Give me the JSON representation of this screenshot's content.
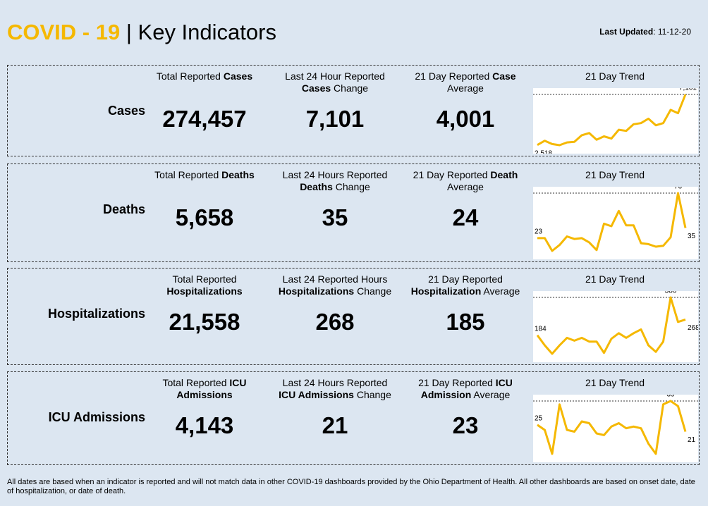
{
  "header": {
    "title_highlight": "COVID - 19",
    "separator": "|",
    "title": "Key Indicators",
    "updated_label": "Last Updated",
    "updated": ": 11-12-20"
  },
  "rows": [
    {
      "label": "Cases",
      "metrics": [
        {
          "title": [
            [
              {
                "text": "Total Reported "
              },
              {
                "text": "Cases",
                "bold": true
              }
            ]
          ],
          "value": "274,457"
        },
        {
          "title": [
            [
              {
                "text": "Last 24 Hour Reported"
              }
            ],
            [
              {
                "text": "Cases",
                "bold": true
              },
              {
                "text": " Change"
              }
            ]
          ],
          "value": "7,101"
        },
        {
          "title": [
            [
              {
                "text": "21 Day Reported "
              },
              {
                "text": "Case",
                "bold": true
              }
            ],
            [
              {
                "text": "Average"
              }
            ]
          ],
          "value": "4,001"
        }
      ],
      "trend": {
        "title": "21 Day Trend",
        "values": [
          2518,
          2900,
          2600,
          2500,
          2750,
          2800,
          3400,
          3600,
          3000,
          3300,
          3100,
          3900,
          3800,
          4400,
          4500,
          4900,
          4300,
          4500,
          5700,
          5400,
          7101
        ],
        "value_labels": [
          "2,518",
          null,
          null,
          null,
          null,
          null,
          null,
          null,
          null,
          null,
          null,
          null,
          null,
          null,
          null,
          null,
          null,
          null,
          null,
          null,
          "7,101"
        ]
      }
    },
    {
      "label": "Deaths",
      "metrics": [
        {
          "title": [
            [
              {
                "text": "Total Reported "
              },
              {
                "text": "Deaths",
                "bold": true
              }
            ]
          ],
          "value": "5,658"
        },
        {
          "title": [
            [
              {
                "text": "Last 24 Hours Reported"
              }
            ],
            [
              {
                "text": "Deaths",
                "bold": true
              },
              {
                "text": " Change"
              }
            ]
          ],
          "value": "35"
        },
        {
          "title": [
            [
              {
                "text": "21 Day Reported "
              },
              {
                "text": "Death",
                "bold": true
              }
            ],
            [
              {
                "text": "Average"
              }
            ]
          ],
          "value": "24"
        }
      ],
      "trend": {
        "title": "21 Day Trend",
        "values": [
          23,
          23,
          8,
          15,
          25,
          22,
          23,
          18,
          9,
          40,
          37,
          55,
          38,
          38,
          17,
          16,
          13,
          14,
          24,
          76,
          35
        ],
        "value_labels": [
          "23",
          null,
          null,
          null,
          null,
          null,
          null,
          null,
          null,
          null,
          null,
          null,
          null,
          null,
          null,
          null,
          null,
          null,
          null,
          "76",
          "35"
        ]
      }
    },
    {
      "label": "Hospitalizations",
      "metrics": [
        {
          "title": [
            [
              {
                "text": "Total Reported"
              }
            ],
            [
              {
                "text": "Hospitalizations",
                "bold": true
              }
            ]
          ],
          "value": "21,558"
        },
        {
          "title": [
            [
              {
                "text": "Last 24 Reported Hours"
              }
            ],
            [
              {
                "text": "Hospitalizations",
                "bold": true
              },
              {
                "text": " Change"
              }
            ]
          ],
          "value": "268"
        },
        {
          "title": [
            [
              {
                "text": "21 Day Reported"
              }
            ],
            [
              {
                "text": "Hospitalization",
                "bold": true
              },
              {
                "text": " Average"
              }
            ]
          ],
          "value": "185"
        }
      ],
      "trend": {
        "title": "21 Day Trend",
        "values": [
          184,
          130,
          85,
          130,
          170,
          155,
          170,
          150,
          150,
          90,
          165,
          195,
          170,
          195,
          215,
          130,
          95,
          150,
          386,
          255,
          268
        ],
        "value_labels": [
          "184",
          null,
          null,
          null,
          null,
          null,
          null,
          null,
          null,
          null,
          null,
          null,
          null,
          null,
          null,
          null,
          null,
          null,
          "386",
          null,
          "268"
        ]
      }
    },
    {
      "label": "ICU Admissions",
      "metrics": [
        {
          "title": [
            [
              {
                "text": "Total Reported "
              },
              {
                "text": "ICU",
                "bold": true
              }
            ],
            [
              {
                "text": "Admissions",
                "bold": true
              }
            ]
          ],
          "value": "4,143"
        },
        {
          "title": [
            [
              {
                "text": "Last 24 Hours Reported"
              }
            ],
            [
              {
                "text": "ICU Admissions",
                "bold": true
              },
              {
                "text": " Change"
              }
            ]
          ],
          "value": "21"
        },
        {
          "title": [
            [
              {
                "text": "21 Day Reported "
              },
              {
                "text": "ICU",
                "bold": true
              }
            ],
            [
              {
                "text": "Admission",
                "bold": true
              },
              {
                "text": " Average"
              }
            ]
          ],
          "value": "23"
        }
      ],
      "trend": {
        "title": "21 Day Trend",
        "values": [
          25,
          22,
          8,
          37,
          22,
          21,
          27,
          26,
          20,
          19,
          24,
          26,
          23,
          24,
          23,
          14,
          8,
          37,
          39,
          36,
          21
        ],
        "value_labels": [
          "25",
          null,
          null,
          null,
          null,
          null,
          null,
          null,
          null,
          null,
          null,
          null,
          null,
          null,
          null,
          null,
          null,
          null,
          "39",
          null,
          "21"
        ]
      }
    }
  ],
  "footnote": "All dates are based when an indicator is reported and will not match data in other COVID-19 dashboards provided by the Ohio Department of Health. All other dashboards are based on onset date, date of hospitalization, or date of death."
}
